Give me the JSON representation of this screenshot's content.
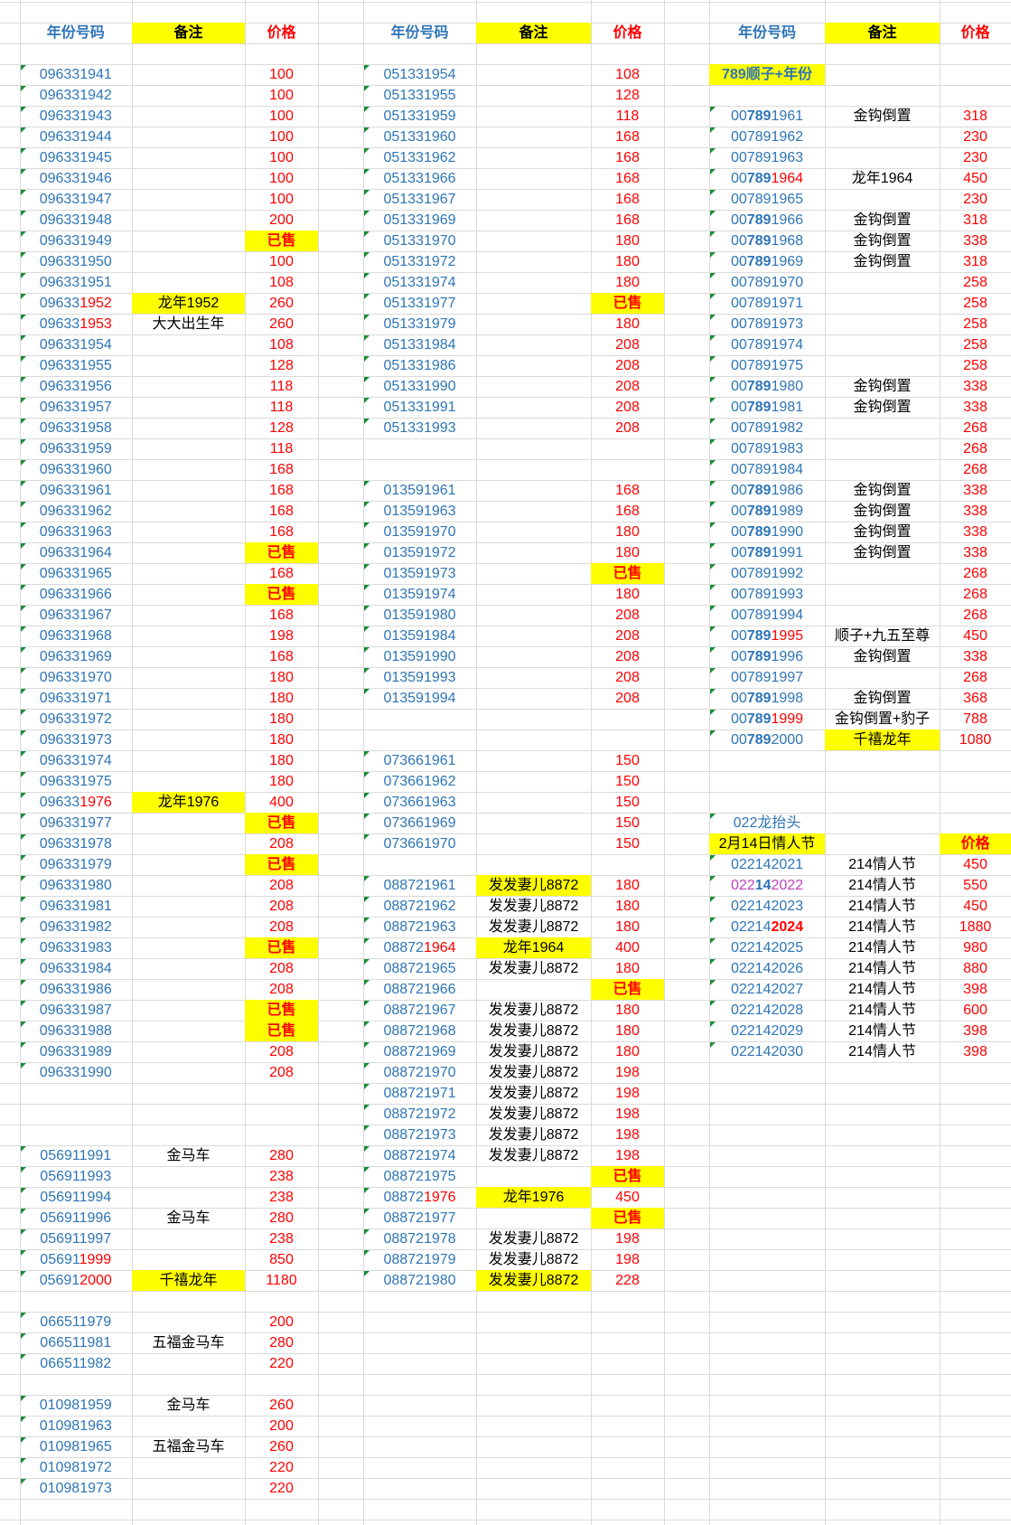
{
  "blocks": [
    {
      "header": [
        "年份号码",
        "备注",
        "价格"
      ],
      "rows": [
        [
          "096331941",
          null,
          100
        ],
        [
          "096331942",
          null,
          100
        ],
        [
          "096331943",
          null,
          100
        ],
        [
          "096331944",
          null,
          100
        ],
        [
          "096331945",
          null,
          100
        ],
        [
          "096331946",
          null,
          100
        ],
        [
          "096331947",
          null,
          100
        ],
        [
          "096331948",
          null,
          200
        ],
        [
          "096331949",
          null,
          {
            "text": "已售",
            "highlight": true,
            "bold": true
          }
        ],
        [
          "096331950",
          null,
          100
        ],
        [
          "096331951",
          null,
          108
        ],
        [
          [
            {
              "text": "09633"
            },
            {
              "text": "1952",
              "color": "#ff0000"
            }
          ],
          {
            "text": "龙年1952",
            "highlight": true
          },
          260
        ],
        [
          [
            {
              "text": "09633"
            },
            {
              "text": "1953",
              "color": "#ff0000"
            }
          ],
          "大大出生年",
          260
        ],
        [
          "096331954",
          null,
          108
        ],
        [
          "096331955",
          null,
          128
        ],
        [
          "096331956",
          null,
          118
        ],
        [
          "096331957",
          null,
          118
        ],
        [
          "096331958",
          null,
          128
        ],
        [
          "096331959",
          null,
          118
        ],
        [
          "096331960",
          null,
          168
        ],
        [
          "096331961",
          null,
          168
        ],
        [
          "096331962",
          null,
          168
        ],
        [
          "096331963",
          null,
          168
        ],
        [
          "096331964",
          null,
          {
            "text": "已售",
            "highlight": true,
            "bold": true
          }
        ],
        [
          "096331965",
          null,
          168
        ],
        [
          "096331966",
          null,
          {
            "text": "已售",
            "highlight": true,
            "bold": true
          }
        ],
        [
          "096331967",
          null,
          168
        ],
        [
          "096331968",
          null,
          198
        ],
        [
          "096331969",
          null,
          168
        ],
        [
          "096331970",
          null,
          180
        ],
        [
          "096331971",
          null,
          180
        ],
        [
          "096331972",
          null,
          180
        ],
        [
          "096331973",
          null,
          180
        ],
        [
          "096331974",
          null,
          180
        ],
        [
          "096331975",
          null,
          180
        ],
        [
          [
            {
              "text": "09633"
            },
            {
              "text": "1976",
              "color": "#ff0000"
            }
          ],
          {
            "text": "龙年1976",
            "highlight": true
          },
          400
        ],
        [
          "096331977",
          null,
          {
            "text": "已售",
            "highlight": true,
            "bold": true
          }
        ],
        [
          "096331978",
          null,
          208
        ],
        [
          "096331979",
          null,
          {
            "text": "已售",
            "highlight": true,
            "bold": true
          }
        ],
        [
          "096331980",
          null,
          208
        ],
        [
          "096331981",
          null,
          208
        ],
        [
          "096331982",
          null,
          208
        ],
        [
          "096331983",
          null,
          {
            "text": "已售",
            "highlight": true,
            "bold": true
          }
        ],
        [
          "096331984",
          null,
          208
        ],
        [
          "096331986",
          null,
          208
        ],
        [
          "096331987",
          null,
          {
            "text": "已售",
            "highlight": true,
            "bold": true
          }
        ],
        [
          "096331988",
          null,
          {
            "text": "已售",
            "highlight": true,
            "bold": true
          }
        ],
        [
          "096331989",
          null,
          208
        ],
        [
          "096331990",
          null,
          208
        ],
        null,
        null,
        null,
        [
          "056911991",
          "金马车",
          280
        ],
        [
          "056911993",
          null,
          238
        ],
        [
          "056911994",
          null,
          238
        ],
        [
          "056911996",
          "金马车",
          280
        ],
        [
          "056911997",
          null,
          238
        ],
        [
          [
            {
              "text": "05691"
            },
            {
              "text": "1999",
              "color": "#ff0000"
            }
          ],
          null,
          850
        ],
        [
          [
            {
              "text": "05691"
            },
            {
              "text": "2000",
              "color": "#ff0000"
            }
          ],
          {
            "text": "千禧龙年",
            "highlight": true
          },
          1180
        ],
        null,
        [
          "066511979",
          null,
          200
        ],
        [
          "066511981",
          "五福金马车",
          280
        ],
        [
          "066511982",
          null,
          220
        ],
        null,
        [
          "010981959",
          "金马车",
          260
        ],
        [
          "010981963",
          null,
          200
        ],
        [
          "010981965",
          "五福金马车",
          260
        ],
        [
          "010981972",
          null,
          220
        ],
        [
          "010981973",
          null,
          220
        ]
      ]
    },
    {
      "header": [
        "年份号码",
        "备注",
        "价格"
      ],
      "rows": [
        [
          "051331954",
          null,
          108
        ],
        [
          "051331955",
          null,
          128
        ],
        [
          "051331959",
          null,
          118
        ],
        [
          "051331960",
          null,
          168
        ],
        [
          "051331962",
          null,
          168
        ],
        [
          "051331966",
          null,
          168
        ],
        [
          "051331967",
          null,
          168
        ],
        [
          "051331969",
          null,
          168
        ],
        [
          "051331970",
          null,
          180
        ],
        [
          "051331972",
          null,
          180
        ],
        [
          "051331974",
          null,
          180
        ],
        [
          "051331977",
          null,
          {
            "text": "已售",
            "highlight": true,
            "bold": true
          }
        ],
        [
          "051331979",
          null,
          180
        ],
        [
          "051331984",
          null,
          208
        ],
        [
          "051331986",
          null,
          208
        ],
        [
          "051331990",
          null,
          208
        ],
        [
          "051331991",
          null,
          208
        ],
        [
          "051331993",
          null,
          208
        ],
        null,
        null,
        [
          "013591961",
          null,
          168
        ],
        [
          "013591963",
          null,
          168
        ],
        [
          "013591970",
          null,
          180
        ],
        [
          "013591972",
          null,
          180
        ],
        [
          "013591973",
          null,
          {
            "text": "已售",
            "highlight": true,
            "bold": true
          }
        ],
        [
          "013591974",
          null,
          180
        ],
        [
          "013591980",
          null,
          208
        ],
        [
          "013591984",
          null,
          208
        ],
        [
          "013591990",
          null,
          208
        ],
        [
          "013591993",
          null,
          208
        ],
        [
          "013591994",
          null,
          208
        ],
        null,
        null,
        [
          "073661961",
          null,
          150
        ],
        [
          "073661962",
          null,
          150
        ],
        [
          "073661963",
          null,
          150
        ],
        [
          "073661969",
          null,
          150
        ],
        [
          "073661970",
          null,
          150
        ],
        null,
        [
          "088721961",
          {
            "text": "发发妻儿8872",
            "highlight": true
          },
          180
        ],
        [
          "088721962",
          "发发妻儿8872",
          180
        ],
        [
          "088721963",
          "发发妻儿8872",
          180
        ],
        [
          [
            {
              "text": "08872"
            },
            {
              "text": "1964",
              "color": "#ff0000"
            }
          ],
          {
            "text": "龙年1964",
            "highlight": true
          },
          400
        ],
        [
          "088721965",
          "发发妻儿8872",
          180
        ],
        [
          "088721966",
          null,
          {
            "text": "已售",
            "highlight": true,
            "bold": true
          }
        ],
        [
          "088721967",
          "发发妻儿8872",
          180
        ],
        [
          "088721968",
          "发发妻儿8872",
          180
        ],
        [
          "088721969",
          "发发妻儿8872",
          180
        ],
        [
          "088721970",
          "发发妻儿8872",
          198
        ],
        [
          "088721971",
          "发发妻儿8872",
          198
        ],
        [
          "088721972",
          "发发妻儿8872",
          198
        ],
        [
          "088721973",
          "发发妻儿8872",
          198
        ],
        [
          "088721974",
          "发发妻儿8872",
          198
        ],
        [
          "088721975",
          null,
          {
            "text": "已售",
            "highlight": true,
            "bold": true
          }
        ],
        [
          [
            {
              "text": "08872"
            },
            {
              "text": "1976",
              "color": "#ff0000"
            }
          ],
          {
            "text": "龙年1976",
            "highlight": true
          },
          450
        ],
        [
          "088721977",
          null,
          {
            "text": "已售",
            "highlight": true,
            "bold": true
          }
        ],
        [
          "088721978",
          "发发妻儿8872",
          198
        ],
        [
          "088721979",
          "发发妻儿8872",
          198
        ],
        [
          "088721980",
          {
            "text": "发发妻儿8872",
            "highlight": true
          },
          228
        ]
      ]
    },
    {
      "header": [
        "年份号码",
        "备注",
        "价格"
      ],
      "rows": [
        [
          {
            "text": "789顺子+年份",
            "highlight": true,
            "bold": true
          },
          null,
          null
        ],
        null,
        [
          [
            {
              "text": "00"
            },
            {
              "text": "789",
              "bold": true
            },
            {
              "text": "1961"
            }
          ],
          "金钩倒置",
          318
        ],
        [
          "007891962",
          null,
          230
        ],
        [
          "007891963",
          null,
          230
        ],
        [
          [
            {
              "text": "00"
            },
            {
              "text": "789",
              "bold": true
            },
            {
              "text": "1964",
              "color": "#ff0000"
            }
          ],
          "龙年1964",
          450
        ],
        [
          "007891965",
          null,
          230
        ],
        [
          [
            {
              "text": "00"
            },
            {
              "text": "789",
              "bold": true
            },
            {
              "text": "1966"
            }
          ],
          "金钩倒置",
          318
        ],
        [
          [
            {
              "text": "00"
            },
            {
              "text": "789",
              "bold": true
            },
            {
              "text": "1968"
            }
          ],
          "金钩倒置",
          338
        ],
        [
          [
            {
              "text": "00"
            },
            {
              "text": "789",
              "bold": true
            },
            {
              "text": "1969"
            }
          ],
          "金钩倒置",
          318
        ],
        [
          "007891970",
          null,
          258
        ],
        [
          "007891971",
          null,
          258
        ],
        [
          "007891973",
          null,
          258
        ],
        [
          "007891974",
          null,
          258
        ],
        [
          "007891975",
          null,
          258
        ],
        [
          [
            {
              "text": "00"
            },
            {
              "text": "789",
              "bold": true
            },
            {
              "text": "1980"
            }
          ],
          "金钩倒置",
          338
        ],
        [
          [
            {
              "text": "00"
            },
            {
              "text": "789",
              "bold": true
            },
            {
              "text": "1981"
            }
          ],
          "金钩倒置",
          338
        ],
        [
          "007891982",
          null,
          268
        ],
        [
          "007891983",
          null,
          268
        ],
        [
          "007891984",
          null,
          268
        ],
        [
          [
            {
              "text": "00"
            },
            {
              "text": "789",
              "bold": true
            },
            {
              "text": "1986"
            }
          ],
          "金钩倒置",
          338
        ],
        [
          [
            {
              "text": "00"
            },
            {
              "text": "789",
              "bold": true
            },
            {
              "text": "1989"
            }
          ],
          "金钩倒置",
          338
        ],
        [
          [
            {
              "text": "00"
            },
            {
              "text": "789",
              "bold": true
            },
            {
              "text": "1990"
            }
          ],
          "金钩倒置",
          338
        ],
        [
          [
            {
              "text": "00"
            },
            {
              "text": "789",
              "bold": true
            },
            {
              "text": "1991"
            }
          ],
          "金钩倒置",
          338
        ],
        [
          "007891992",
          null,
          268
        ],
        [
          "007891993",
          null,
          268
        ],
        [
          "007891994",
          null,
          268
        ],
        [
          [
            {
              "text": "00"
            },
            {
              "text": "789",
              "bold": true
            },
            {
              "text": "1995",
              "color": "#ff0000"
            }
          ],
          "顺子+九五至尊",
          450
        ],
        [
          [
            {
              "text": "00"
            },
            {
              "text": "789",
              "bold": true
            },
            {
              "text": "1996"
            }
          ],
          "金钩倒置",
          338
        ],
        [
          "007891997",
          null,
          268
        ],
        [
          [
            {
              "text": "00"
            },
            {
              "text": "789",
              "bold": true
            },
            {
              "text": "1998"
            }
          ],
          "金钩倒置",
          368
        ],
        [
          [
            {
              "text": "00"
            },
            {
              "text": "789",
              "bold": true
            },
            {
              "text": "1999",
              "color": "#ff0000"
            }
          ],
          "金钩倒置+豹子",
          788
        ],
        [
          [
            {
              "text": "00"
            },
            {
              "text": "789",
              "bold": true
            },
            {
              "text": "2000"
            }
          ],
          {
            "text": "千禧龙年",
            "highlight": true
          },
          1080
        ],
        null,
        null,
        null,
        [
          "022龙抬头",
          null,
          null
        ],
        [
          {
            "text": "2月14日情人节",
            "highlight": true,
            "color": "#000000"
          },
          null,
          {
            "text": "价格",
            "highlight": true,
            "bold": true
          }
        ],
        [
          "022142021",
          "214情人节",
          450
        ],
        [
          [
            {
              "text": "022",
              "color": "#c040c0"
            },
            {
              "text": "14",
              "bold": true
            },
            {
              "text": "2022",
              "color": "#c040c0"
            }
          ],
          "214情人节",
          550
        ],
        [
          "022142023",
          "214情人节",
          450
        ],
        [
          [
            {
              "text": "02214"
            },
            {
              "text": "2024",
              "color": "#ff0000",
              "bold": true
            }
          ],
          "214情人节",
          1880
        ],
        [
          "022142025",
          "214情人节",
          980
        ],
        [
          "022142026",
          "214情人节",
          880
        ],
        [
          "022142027",
          "214情人节",
          398
        ],
        [
          "022142028",
          "214情人节",
          600
        ],
        [
          "022142029",
          "214情人节",
          398
        ],
        [
          "022142030",
          "214情人节",
          398
        ]
      ]
    }
  ]
}
